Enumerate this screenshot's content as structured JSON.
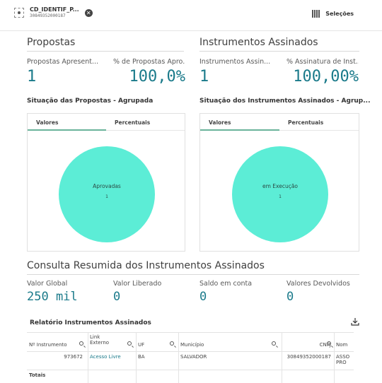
{
  "selection_bar": {
    "field": "CD_IDENTIF_P...",
    "value": "30849352000187",
    "selections_label": "Seleções"
  },
  "propostas": {
    "title": "Propostas",
    "kpis": [
      {
        "label": "Propostas Apresent...",
        "value": "1"
      },
      {
        "label": "% de Propostas Apro...",
        "value": "100,0%"
      }
    ],
    "chart": {
      "title": "Situação das Propostas - Agrupada",
      "tabs": [
        "Valores",
        "Percentuais"
      ],
      "slice_label": "Aprovadas",
      "slice_count": "1"
    }
  },
  "instrumentos": {
    "title": "Instrumentos Assinados",
    "kpis": [
      {
        "label": "Instrumentos Assin...",
        "value": "1"
      },
      {
        "label": "% Assinatura de Inst...",
        "value": "100,00%"
      }
    ],
    "chart": {
      "title": "Situação dos Instrumentos Assinados - Agrup...",
      "tabs": [
        "Valores",
        "Percentuais"
      ],
      "slice_label": "em Execução",
      "slice_count": "1"
    }
  },
  "consulta": {
    "title": "Consulta Resumida dos Instrumentos Assinados",
    "kpis": [
      {
        "label": "Valor Global",
        "value": "250 mil"
      },
      {
        "label": "Valor Liberado",
        "value": "0"
      },
      {
        "label": "Saldo em conta",
        "value": "0"
      },
      {
        "label": "Valores Devolvidos",
        "value": "0"
      }
    ]
  },
  "relatorio": {
    "title": "Relatório Instrumentos Assinados",
    "headers": [
      "Nº Instrumento",
      "Link Externo",
      "UF",
      "Município",
      "CNPJ",
      "Nom"
    ],
    "row": [
      "973672",
      "Acesso Livre",
      "BA",
      "SALVADOR",
      "30849352000187",
      "ASSO PRO"
    ],
    "totals_label": "Totais"
  },
  "colors": {
    "accent": "#1a7a8a",
    "pie": "#5cedd6",
    "tab_underline": "#6ab39a"
  },
  "chart_data": [
    {
      "type": "pie",
      "title": "Situação das Propostas - Agrupada",
      "categories": [
        "Aprovadas"
      ],
      "values": [
        1
      ]
    },
    {
      "type": "pie",
      "title": "Situação dos Instrumentos Assinados - Agrup...",
      "categories": [
        "em Execução"
      ],
      "values": [
        1
      ]
    }
  ]
}
